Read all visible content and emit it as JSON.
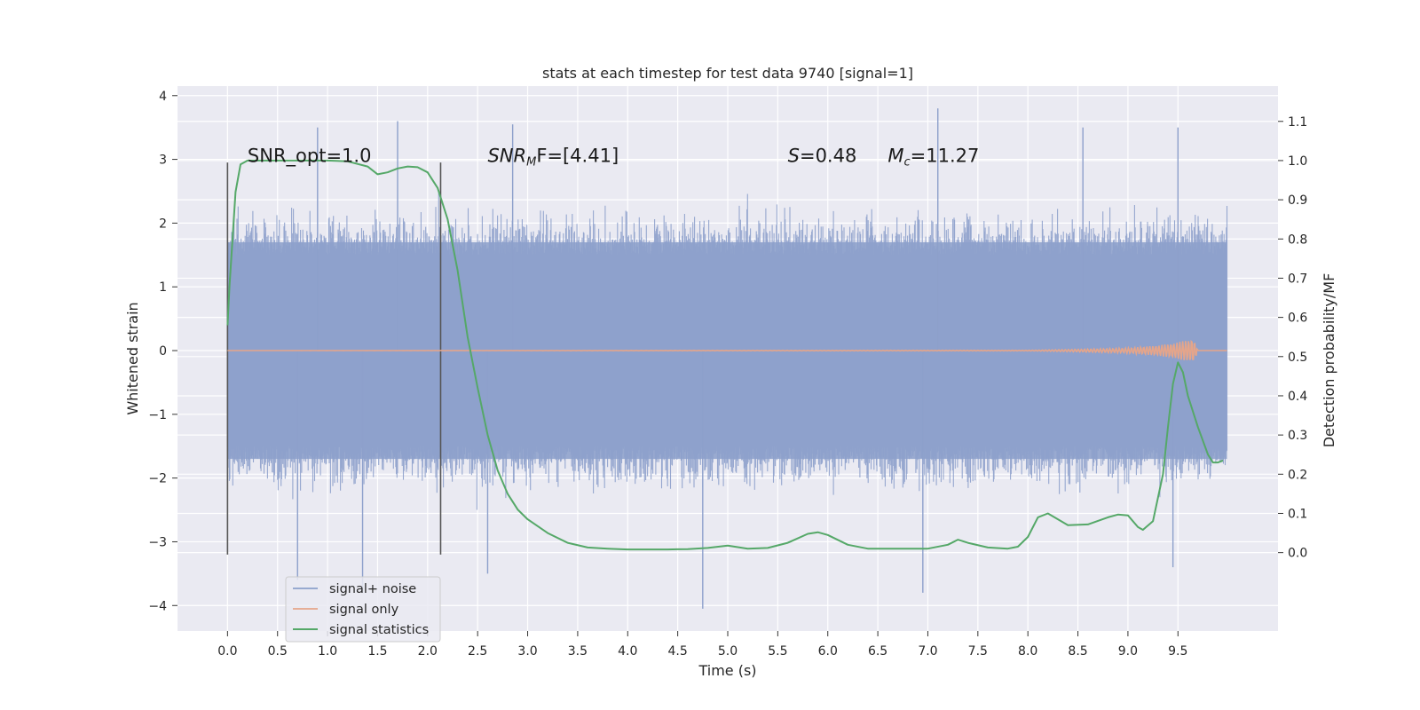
{
  "chart_data": {
    "type": "line",
    "title": "stats at each timestep for test data 9740 [signal=1]",
    "xlabel": "Time (s)",
    "ylabel_left": "Whitened strain",
    "ylabel_right": "Detection probability/MF",
    "xlim": [
      -0.5,
      10.5
    ],
    "ylim_left": [
      -4.4,
      4.15
    ],
    "ylim_right": [
      -0.2,
      1.19
    ],
    "x_ticks": [
      "0.0",
      "0.5",
      "1.0",
      "1.5",
      "2.0",
      "2.5",
      "3.0",
      "3.5",
      "4.0",
      "4.5",
      "5.0",
      "5.5",
      "6.0",
      "6.5",
      "7.0",
      "7.5",
      "8.0",
      "8.5",
      "9.0",
      "9.5"
    ],
    "y_left_ticks": [
      "4",
      "3",
      "2",
      "1",
      "0",
      "−1",
      "−2",
      "−3",
      "−4"
    ],
    "y_right_ticks": [
      "1.1",
      "1.0",
      "0.9",
      "0.8",
      "0.7",
      "0.6",
      "0.5",
      "0.4",
      "0.3",
      "0.2",
      "0.1",
      "0.0"
    ],
    "grid": true,
    "legend_position": "lower-left",
    "colors": {
      "signal_noise": "#8da0cb",
      "signal_only": "#e5a58a",
      "signal_statistics": "#55a868",
      "marker_line": "#555555",
      "plot_bg": "#eaeaf2",
      "grid": "#ffffff"
    },
    "series": [
      {
        "name": "signal+ noise",
        "axis": "left",
        "x_range": [
          0.0,
          9.99
        ],
        "envelope_typical": [
          -1.7,
          1.7
        ],
        "spikes": [
          {
            "x": 0.9,
            "y": 3.5
          },
          {
            "x": 1.7,
            "y": 3.6
          },
          {
            "x": 2.85,
            "y": 3.55
          },
          {
            "x": 7.1,
            "y": 3.8
          },
          {
            "x": 8.55,
            "y": 3.5
          },
          {
            "x": 9.5,
            "y": 3.5
          },
          {
            "x": 0.7,
            "y": -3.6
          },
          {
            "x": 1.35,
            "y": -3.8
          },
          {
            "x": 2.6,
            "y": -3.5
          },
          {
            "x": 4.75,
            "y": -4.05
          },
          {
            "x": 6.95,
            "y": -3.8
          },
          {
            "x": 9.45,
            "y": -3.4
          }
        ]
      },
      {
        "name": "signal only",
        "axis": "left",
        "x": [
          0.0,
          8.0,
          8.5,
          9.0,
          9.3,
          9.5,
          9.6,
          9.65,
          9.68,
          9.7,
          9.99
        ],
        "amplitude": [
          0.0,
          0.005,
          0.02,
          0.04,
          0.08,
          0.13,
          0.17,
          0.2,
          0.1,
          0.0,
          0.0
        ]
      },
      {
        "name": "signal statistics",
        "axis": "right",
        "x": [
          0.0,
          0.02,
          0.08,
          0.13,
          0.2,
          0.3,
          0.5,
          0.8,
          1.0,
          1.2,
          1.4,
          1.5,
          1.6,
          1.7,
          1.8,
          1.9,
          2.0,
          2.1,
          2.2,
          2.3,
          2.4,
          2.5,
          2.6,
          2.7,
          2.8,
          2.9,
          3.0,
          3.2,
          3.4,
          3.6,
          3.8,
          4.0,
          4.2,
          4.4,
          4.6,
          4.8,
          5.0,
          5.2,
          5.4,
          5.6,
          5.8,
          5.9,
          6.0,
          6.2,
          6.4,
          6.6,
          6.8,
          7.0,
          7.2,
          7.3,
          7.4,
          7.6,
          7.8,
          7.9,
          8.0,
          8.1,
          8.2,
          8.4,
          8.6,
          8.8,
          8.9,
          9.0,
          9.1,
          9.15,
          9.25,
          9.35,
          9.4,
          9.45,
          9.5,
          9.55,
          9.6,
          9.7,
          9.8,
          9.85,
          9.9,
          9.95
        ],
        "y": [
          0.58,
          0.68,
          0.92,
          0.99,
          1.0,
          1.0,
          1.0,
          1.0,
          1.0,
          0.998,
          0.985,
          0.965,
          0.97,
          0.98,
          0.985,
          0.983,
          0.97,
          0.93,
          0.85,
          0.72,
          0.55,
          0.42,
          0.3,
          0.21,
          0.15,
          0.11,
          0.085,
          0.05,
          0.025,
          0.013,
          0.01,
          0.008,
          0.008,
          0.008,
          0.009,
          0.012,
          0.018,
          0.01,
          0.012,
          0.025,
          0.048,
          0.052,
          0.045,
          0.02,
          0.01,
          0.01,
          0.01,
          0.01,
          0.02,
          0.033,
          0.025,
          0.013,
          0.01,
          0.015,
          0.04,
          0.09,
          0.1,
          0.07,
          0.072,
          0.09,
          0.097,
          0.095,
          0.065,
          0.058,
          0.08,
          0.2,
          0.32,
          0.43,
          0.485,
          0.46,
          0.4,
          0.32,
          0.25,
          0.23,
          0.23,
          0.235
        ]
      }
    ],
    "vertical_lines": [
      {
        "x": 0.0,
        "y_from": -3.2,
        "y_to": 2.95
      },
      {
        "x": 2.13,
        "y_from": -3.2,
        "y_to": 2.95
      }
    ],
    "annotations": {
      "snr_opt": {
        "x": 0.2,
        "y": 3.0,
        "text": "SNR_opt=1.0"
      },
      "snr_mf": {
        "x": 2.6,
        "y": 3.0,
        "base": "SNR",
        "sub": "M",
        "after": "F=[4.41]"
      },
      "s_stat": {
        "x": 5.6,
        "y": 3.0,
        "base": "S",
        "after": "=0.48"
      },
      "mc": {
        "x": 6.6,
        "y": 3.0,
        "base": "M",
        "sub": "c",
        "after": "=11.27"
      }
    }
  }
}
